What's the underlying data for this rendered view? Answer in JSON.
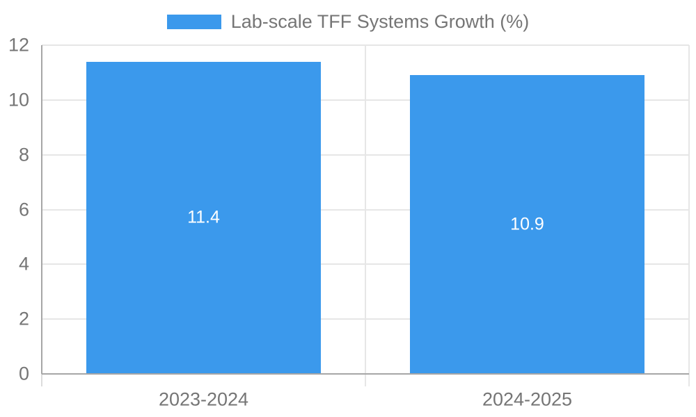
{
  "chart_data": {
    "type": "bar",
    "title": "",
    "categories": [
      "2023-2024",
      "2024-2025"
    ],
    "series": [
      {
        "name": "Lab-scale TFF Systems Growth (%)",
        "values": [
          11.4,
          10.9
        ]
      }
    ],
    "value_labels": [
      "11.4",
      "10.9"
    ],
    "xlabel": "",
    "ylabel": "",
    "ylim": [
      0,
      12
    ],
    "yticks": [
      0,
      2,
      4,
      6,
      8,
      10,
      12
    ],
    "grid": true,
    "legend_position": "top-center",
    "colors": {
      "bar": "#3b99ec",
      "text": "#757575",
      "gridline": "#e6e6e6",
      "axis": "#a6a6a6",
      "axis_tick": "#dcdcdc",
      "value_label": "#ffffff",
      "background": "#ffffff"
    }
  }
}
